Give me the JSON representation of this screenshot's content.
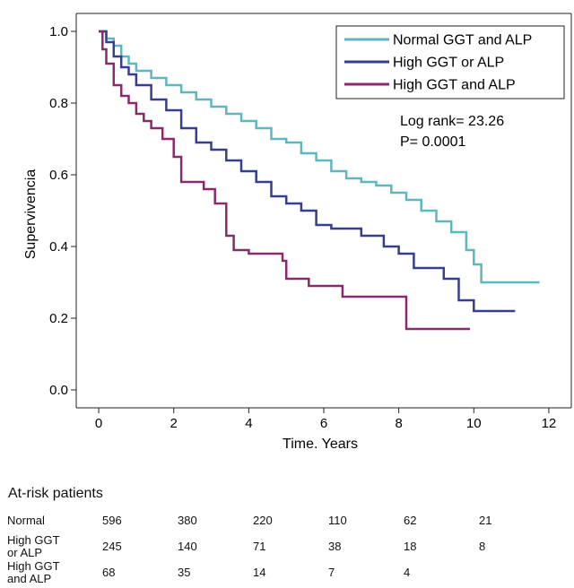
{
  "chart_data": {
    "type": "line",
    "step": true,
    "xlabel": "Time. Years",
    "ylabel": "Supervivencia",
    "xlim": [
      -0.6,
      12.6
    ],
    "ylim": [
      -0.05,
      1.05
    ],
    "xticks": [
      "0",
      "2",
      "4",
      "6",
      "8",
      "10",
      "12"
    ],
    "yticks": [
      "0.0",
      "0.2",
      "0.4",
      "0.6",
      "0.8",
      "1.0"
    ],
    "annotation": [
      "Log rank= 23.26",
      "P= 0.0001"
    ],
    "legend_position": "top-right",
    "series": [
      {
        "name": "Normal GGT and ALP",
        "color": "#5cb8c0",
        "points": [
          [
            0,
            1.0
          ],
          [
            0.2,
            0.98
          ],
          [
            0.4,
            0.96
          ],
          [
            0.6,
            0.93
          ],
          [
            0.8,
            0.91
          ],
          [
            1.0,
            0.89
          ],
          [
            1.4,
            0.87
          ],
          [
            1.8,
            0.85
          ],
          [
            2.2,
            0.83
          ],
          [
            2.6,
            0.81
          ],
          [
            3.0,
            0.79
          ],
          [
            3.4,
            0.77
          ],
          [
            3.8,
            0.75
          ],
          [
            4.2,
            0.73
          ],
          [
            4.6,
            0.7
          ],
          [
            5.0,
            0.69
          ],
          [
            5.4,
            0.66
          ],
          [
            5.8,
            0.64
          ],
          [
            6.2,
            0.61
          ],
          [
            6.6,
            0.59
          ],
          [
            7.0,
            0.58
          ],
          [
            7.4,
            0.57
          ],
          [
            7.8,
            0.55
          ],
          [
            8.2,
            0.53
          ],
          [
            8.6,
            0.5
          ],
          [
            9.0,
            0.47
          ],
          [
            9.4,
            0.44
          ],
          [
            9.8,
            0.39
          ],
          [
            10.0,
            0.35
          ],
          [
            10.2,
            0.3
          ],
          [
            11.75,
            0.3
          ]
        ]
      },
      {
        "name": "High GGT or ALP",
        "color": "#353e8f",
        "points": [
          [
            0,
            1.0
          ],
          [
            0.2,
            0.97
          ],
          [
            0.4,
            0.93
          ],
          [
            0.6,
            0.9
          ],
          [
            0.8,
            0.88
          ],
          [
            1.0,
            0.85
          ],
          [
            1.4,
            0.81
          ],
          [
            1.8,
            0.78
          ],
          [
            2.2,
            0.73
          ],
          [
            2.6,
            0.69
          ],
          [
            3.0,
            0.67
          ],
          [
            3.4,
            0.64
          ],
          [
            3.8,
            0.61
          ],
          [
            4.2,
            0.58
          ],
          [
            4.6,
            0.54
          ],
          [
            5.0,
            0.52
          ],
          [
            5.4,
            0.5
          ],
          [
            5.8,
            0.46
          ],
          [
            6.2,
            0.45
          ],
          [
            7.0,
            0.43
          ],
          [
            7.6,
            0.4
          ],
          [
            8.0,
            0.38
          ],
          [
            8.4,
            0.34
          ],
          [
            9.2,
            0.31
          ],
          [
            9.6,
            0.25
          ],
          [
            10.0,
            0.22
          ],
          [
            11.1,
            0.22
          ]
        ]
      },
      {
        "name": "High GGT and ALP",
        "color": "#8a2a6e",
        "points": [
          [
            0,
            1.0
          ],
          [
            0.1,
            0.95
          ],
          [
            0.2,
            0.91
          ],
          [
            0.4,
            0.85
          ],
          [
            0.6,
            0.82
          ],
          [
            0.8,
            0.8
          ],
          [
            1.0,
            0.77
          ],
          [
            1.2,
            0.75
          ],
          [
            1.4,
            0.73
          ],
          [
            1.7,
            0.7
          ],
          [
            2.0,
            0.65
          ],
          [
            2.2,
            0.58
          ],
          [
            2.8,
            0.56
          ],
          [
            3.1,
            0.52
          ],
          [
            3.4,
            0.43
          ],
          [
            3.6,
            0.39
          ],
          [
            4.0,
            0.38
          ],
          [
            4.9,
            0.36
          ],
          [
            5.0,
            0.31
          ],
          [
            5.6,
            0.29
          ],
          [
            6.5,
            0.26
          ],
          [
            7.6,
            0.26
          ],
          [
            8.2,
            0.17
          ],
          [
            9.9,
            0.17
          ]
        ]
      }
    ]
  },
  "risk_table": {
    "title": "At-risk patients",
    "rows": [
      {
        "label_lines": [
          "Normal"
        ],
        "values": [
          "596",
          "380",
          "220",
          "110",
          "62",
          "21"
        ]
      },
      {
        "label_lines": [
          "High GGT",
          "or ALP"
        ],
        "values": [
          "245",
          "140",
          "71",
          "38",
          "18",
          "8"
        ]
      },
      {
        "label_lines": [
          "High GGT",
          "and ALP"
        ],
        "values": [
          "68",
          "35",
          "14",
          "7",
          "4",
          ""
        ]
      }
    ]
  }
}
